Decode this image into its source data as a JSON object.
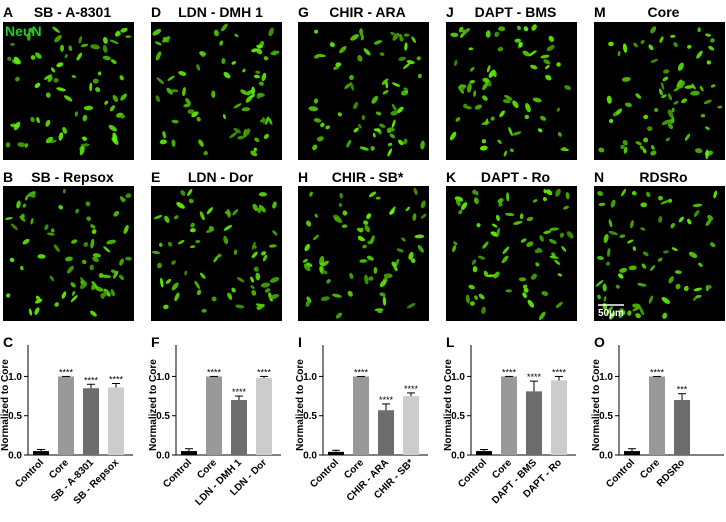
{
  "panels": [
    {
      "letter": "A",
      "title": "SB - A-8301"
    },
    {
      "letter": "B",
      "title": "SB - Repsox"
    },
    {
      "letter": "D",
      "title": "LDN - DMH 1"
    },
    {
      "letter": "E",
      "title": "LDN - Dor"
    },
    {
      "letter": "G",
      "title": "CHIR - ARA"
    },
    {
      "letter": "H",
      "title": "CHIR - SB*"
    },
    {
      "letter": "J",
      "title": "DAPT - BMS"
    },
    {
      "letter": "K",
      "title": "DAPT - Ro"
    },
    {
      "letter": "M",
      "title": "Core"
    },
    {
      "letter": "N",
      "title": "RDSRo"
    }
  ],
  "stain": "NeuN",
  "scale_bar": "50µm",
  "chart_data": [
    {
      "type": "bar",
      "label": "C",
      "ylabel": "Normalized to Core",
      "categories": [
        "Control",
        "Core",
        "SB - A-8301",
        "SB - Repsox"
      ],
      "values": [
        0.05,
        1.0,
        0.85,
        0.86
      ],
      "errors": [
        0.02,
        0,
        0.05,
        0.05
      ],
      "colors": [
        "#000000",
        "#999999",
        "#6d6d6d",
        "#cccccc"
      ],
      "annotations": [
        null,
        "****",
        "****",
        "****"
      ],
      "ylim": [
        0,
        1.4
      ],
      "yticks": [
        {
          "value": 0,
          "label": "0.0"
        },
        {
          "value": 0.5,
          "label": "0.5"
        },
        {
          "value": 1,
          "label": "1.0"
        }
      ]
    },
    {
      "type": "bar",
      "label": "F",
      "ylabel": "Normalized to Core",
      "categories": [
        "Control",
        "Core",
        "LDN - DMH 1",
        "LDN - Dor"
      ],
      "values": [
        0.05,
        1.0,
        0.7,
        0.98
      ],
      "errors": [
        0.03,
        0,
        0.05,
        0.02
      ],
      "colors": [
        "#000000",
        "#999999",
        "#6d6d6d",
        "#cccccc"
      ],
      "annotations": [
        null,
        "****",
        "****",
        "****"
      ],
      "ylim": [
        0,
        1.4
      ],
      "yticks": [
        {
          "value": 0,
          "label": "0.0"
        },
        {
          "value": 0.5,
          "label": "0.5"
        },
        {
          "value": 1,
          "label": "1.0"
        }
      ]
    },
    {
      "type": "bar",
      "label": "I",
      "ylabel": "Normalized to Core",
      "categories": [
        "Control",
        "Core",
        "CHIR - ARA",
        "CHIR - SB*"
      ],
      "values": [
        0.04,
        1.0,
        0.57,
        0.75
      ],
      "errors": [
        0.02,
        0,
        0.08,
        0.04
      ],
      "colors": [
        "#000000",
        "#999999",
        "#6d6d6d",
        "#cccccc"
      ],
      "annotations": [
        null,
        "****",
        "****",
        "****"
      ],
      "ylim": [
        0,
        1.4
      ],
      "yticks": [
        {
          "value": 0,
          "label": "0.0"
        },
        {
          "value": 0.5,
          "label": "0.5"
        },
        {
          "value": 1,
          "label": "1.0"
        }
      ]
    },
    {
      "type": "bar",
      "label": "L",
      "ylabel": "Normalized to Core",
      "categories": [
        "Control",
        "Core",
        "DAPT - BMS",
        "DAPT - Ro"
      ],
      "values": [
        0.05,
        1.0,
        0.81,
        0.95
      ],
      "errors": [
        0.02,
        0,
        0.13,
        0.05
      ],
      "colors": [
        "#000000",
        "#999999",
        "#6d6d6d",
        "#cccccc"
      ],
      "annotations": [
        null,
        "****",
        "****",
        "****"
      ],
      "ylim": [
        0,
        1.4
      ],
      "yticks": [
        {
          "value": 0,
          "label": "0.0"
        },
        {
          "value": 0.5,
          "label": "0.5"
        },
        {
          "value": 1,
          "label": "1.0"
        }
      ]
    },
    {
      "type": "bar",
      "label": "O",
      "ylabel": "Normalized to Core",
      "categories": [
        "Control",
        "Core",
        "RDSRo"
      ],
      "values": [
        0.05,
        1.0,
        0.7
      ],
      "errors": [
        0.03,
        0,
        0.08
      ],
      "colors": [
        "#000000",
        "#999999",
        "#6d6d6d"
      ],
      "annotations": [
        null,
        "****",
        "***"
      ],
      "ylim": [
        0,
        1.4
      ],
      "yticks": [
        {
          "value": 0,
          "label": "0.0"
        },
        {
          "value": 0.5,
          "label": "0.5"
        },
        {
          "value": 1,
          "label": "1.0"
        }
      ]
    }
  ]
}
